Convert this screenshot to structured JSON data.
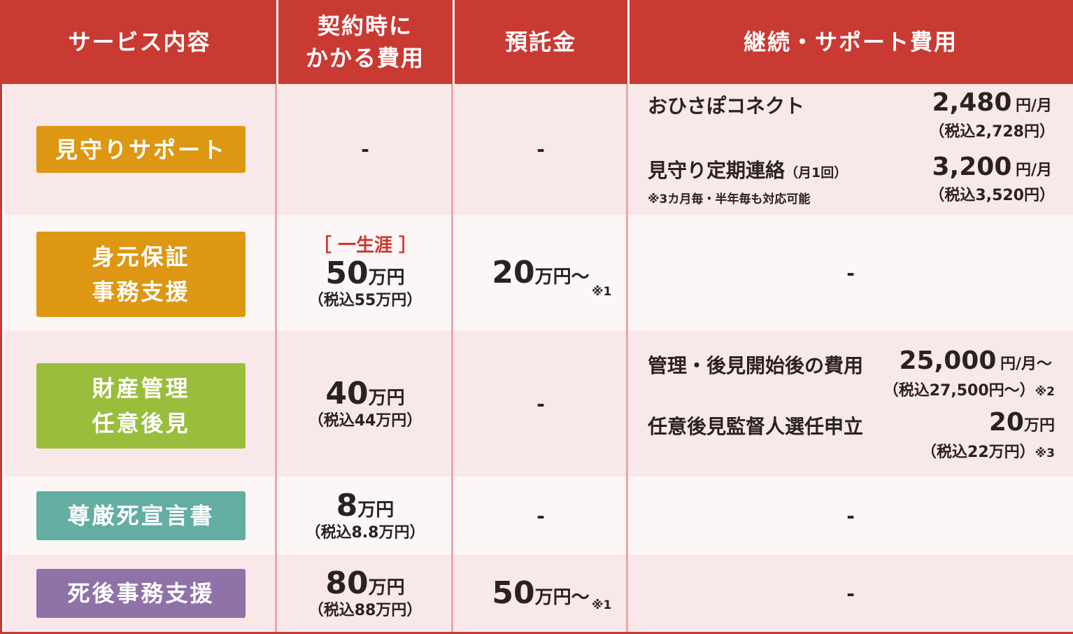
{
  "header": {
    "service": "サービス内容",
    "initial_line1": "契約時に",
    "initial_line2": "かかる費用",
    "deposit": "預託金",
    "ongoing": "継続・サポート費用"
  },
  "colors": {
    "header": "#c93a33",
    "row_pink": "#f9e8e9",
    "row_light": "#fdf6f6",
    "mimamori": "#dd9713",
    "mimoto": "#dd9713",
    "zaisan": "#9bbd3c",
    "songenshi": "#63ada3",
    "shigo": "#8f72a8",
    "bracket": "#c93a33"
  },
  "dash": "-",
  "rows": [
    {
      "service": "見守りサポート",
      "ongoing": [
        {
          "label": "おひさぽコネクト",
          "price": "2,480",
          "unit": "円/月",
          "tax": "（税込2,728円）"
        },
        {
          "label": "見守り定期連絡",
          "label_small": "（月1回）",
          "note": "※3カ月毎・半年毎も対応可能",
          "price": "3,200",
          "unit": "円/月",
          "tax": "（税込3,520円）"
        }
      ]
    },
    {
      "service_line1": "身元保証",
      "service_line2": "事務支援",
      "initial_tag": "［ 一生涯 ］",
      "initial_price": "50",
      "initial_unit": "万円",
      "initial_tax": "（税込55万円）",
      "deposit_price": "20",
      "deposit_unit": "万円〜",
      "deposit_note": "※1"
    },
    {
      "service_line1": "財産管理",
      "service_line2": "任意後見",
      "initial_price": "40",
      "initial_unit": "万円",
      "initial_tax": "（税込44万円）",
      "ongoing": [
        {
          "label": "管理・後見開始後の費用",
          "price": "25,000",
          "unit": "円/月〜",
          "tax": "（税込27,500円〜）",
          "note": "※2"
        },
        {
          "label": "任意後見監督人選任申立",
          "price": "20",
          "unit": "万円",
          "tax": "（税込22万円）",
          "note": "※3"
        }
      ]
    },
    {
      "service": "尊厳死宣言書",
      "initial_price": "8",
      "initial_unit": "万円",
      "initial_tax": "（税込8.8万円）"
    },
    {
      "service": "死後事務支援",
      "initial_price": "80",
      "initial_unit": "万円",
      "initial_tax": "（税込88万円）",
      "deposit_price": "50",
      "deposit_unit": "万円〜",
      "deposit_note": "※1"
    }
  ]
}
